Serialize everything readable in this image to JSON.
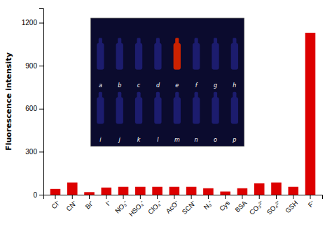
{
  "chart_data": {
    "type": "bar",
    "categories": [
      "Cl⁻",
      "CN⁻",
      "Br⁻",
      "I⁻",
      "NO₃⁻",
      "HSO₄⁻",
      "ClO₄⁻",
      "AcO⁻",
      "SCN⁻",
      "N₃⁻",
      "Cys",
      "BSA",
      "CO₃²⁻",
      "SO₄²⁻",
      "GSH",
      "F⁻"
    ],
    "values": [
      40,
      85,
      18,
      50,
      55,
      55,
      55,
      55,
      55,
      45,
      22,
      45,
      80,
      85,
      55,
      1130
    ],
    "color": "#dd0000",
    "y_label": "Fluorescence intensity",
    "ylim": [
      0,
      1300
    ],
    "yticks": [
      0,
      300,
      600,
      900,
      1200
    ],
    "grid": false,
    "annotations": [
      "a",
      "b",
      "c",
      "d",
      "e",
      "f",
      "g",
      "h",
      "i",
      "j",
      "k",
      "l",
      "m",
      "n",
      "o",
      "p"
    ]
  }
}
